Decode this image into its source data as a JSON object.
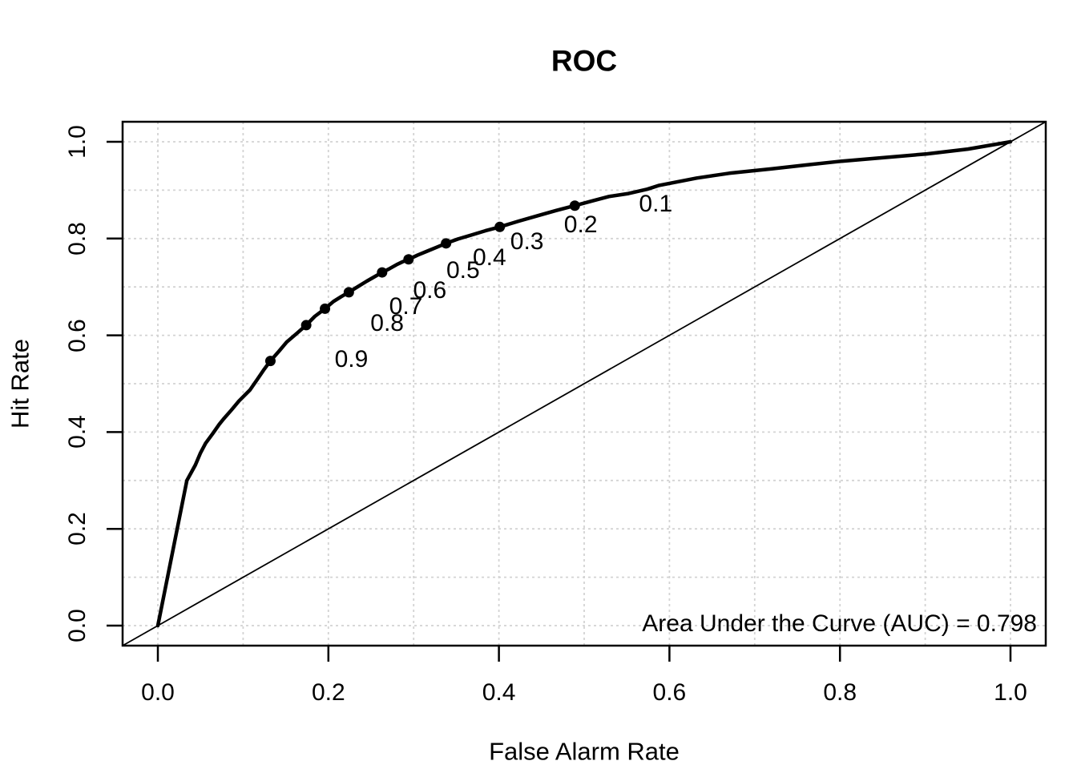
{
  "title": "ROC",
  "annotation": {
    "auc_text": "Area Under the Curve (AUC) = 0.798"
  },
  "colors": {
    "curve": "#000000",
    "diagonal": "#000000",
    "grid": "#d3d3d3",
    "frame": "#000000",
    "background": "#ffffff",
    "text": "#000000"
  },
  "chart_data": {
    "type": "line",
    "title": "ROC",
    "xlabel": "False Alarm Rate",
    "ylabel": "Hit Rate",
    "xlim": [
      0,
      1
    ],
    "ylim": [
      0,
      1
    ],
    "x_ticks": {
      "values": [
        0,
        0.2,
        0.4,
        0.6,
        0.8,
        1.0
      ],
      "labels": [
        "0.0",
        "0.2",
        "0.4",
        "0.6",
        "0.8",
        "1.0"
      ]
    },
    "y_ticks": {
      "values": [
        0,
        0.2,
        0.4,
        0.6,
        0.8,
        1.0
      ],
      "labels": [
        "0.0",
        "0.2",
        "0.4",
        "0.6",
        "0.8",
        "1.0"
      ]
    },
    "grid": {
      "spacing": 0.1,
      "style": "dashed",
      "on": true
    },
    "legend": "none",
    "auc": 0.798,
    "series": [
      {
        "name": "roc-curve",
        "points": [
          [
            0.0,
            0.0
          ],
          [
            0.034,
            0.3
          ],
          [
            0.044,
            0.332
          ],
          [
            0.05,
            0.357
          ],
          [
            0.056,
            0.377
          ],
          [
            0.064,
            0.396
          ],
          [
            0.072,
            0.416
          ],
          [
            0.077,
            0.427
          ],
          [
            0.086,
            0.445
          ],
          [
            0.095,
            0.464
          ],
          [
            0.108,
            0.487
          ],
          [
            0.117,
            0.51
          ],
          [
            0.124,
            0.528
          ],
          [
            0.132,
            0.547
          ],
          [
            0.142,
            0.567
          ],
          [
            0.151,
            0.586
          ],
          [
            0.163,
            0.604
          ],
          [
            0.174,
            0.621
          ],
          [
            0.184,
            0.639
          ],
          [
            0.196,
            0.655
          ],
          [
            0.206,
            0.67
          ],
          [
            0.215,
            0.68
          ],
          [
            0.224,
            0.689
          ],
          [
            0.235,
            0.701
          ],
          [
            0.245,
            0.712
          ],
          [
            0.254,
            0.721
          ],
          [
            0.263,
            0.73
          ],
          [
            0.272,
            0.738
          ],
          [
            0.28,
            0.746
          ],
          [
            0.287,
            0.752
          ],
          [
            0.294,
            0.757
          ],
          [
            0.305,
            0.766
          ],
          [
            0.316,
            0.774
          ],
          [
            0.327,
            0.782
          ],
          [
            0.338,
            0.79
          ],
          [
            0.352,
            0.799
          ],
          [
            0.367,
            0.807
          ],
          [
            0.384,
            0.816
          ],
          [
            0.401,
            0.824
          ],
          [
            0.423,
            0.836
          ],
          [
            0.445,
            0.847
          ],
          [
            0.467,
            0.858
          ],
          [
            0.489,
            0.868
          ],
          [
            0.51,
            0.878
          ],
          [
            0.529,
            0.887
          ],
          [
            0.552,
            0.893
          ],
          [
            0.574,
            0.902
          ],
          [
            0.588,
            0.91
          ],
          [
            0.632,
            0.925
          ],
          [
            0.67,
            0.935
          ],
          [
            0.72,
            0.944
          ],
          [
            0.76,
            0.952
          ],
          [
            0.802,
            0.96
          ],
          [
            0.85,
            0.967
          ],
          [
            0.902,
            0.975
          ],
          [
            0.95,
            0.985
          ],
          [
            1.0,
            1.0
          ]
        ]
      },
      {
        "name": "chance-diagonal",
        "points": [
          [
            0,
            0
          ],
          [
            1,
            1
          ]
        ]
      }
    ],
    "threshold_points": [
      {
        "label": "0.9",
        "x": 0.132,
        "y": 0.547
      },
      {
        "label": "0.8",
        "x": 0.174,
        "y": 0.621
      },
      {
        "label": "0.7",
        "x": 0.196,
        "y": 0.655
      },
      {
        "label": "0.6",
        "x": 0.224,
        "y": 0.689
      },
      {
        "label": "0.5",
        "x": 0.263,
        "y": 0.73
      },
      {
        "label": "0.4",
        "x": 0.294,
        "y": 0.757
      },
      {
        "label": "0.3",
        "x": 0.338,
        "y": 0.79
      },
      {
        "label": "0.2",
        "x": 0.401,
        "y": 0.824
      },
      {
        "label": "0.1",
        "x": 0.489,
        "y": 0.868
      }
    ]
  }
}
